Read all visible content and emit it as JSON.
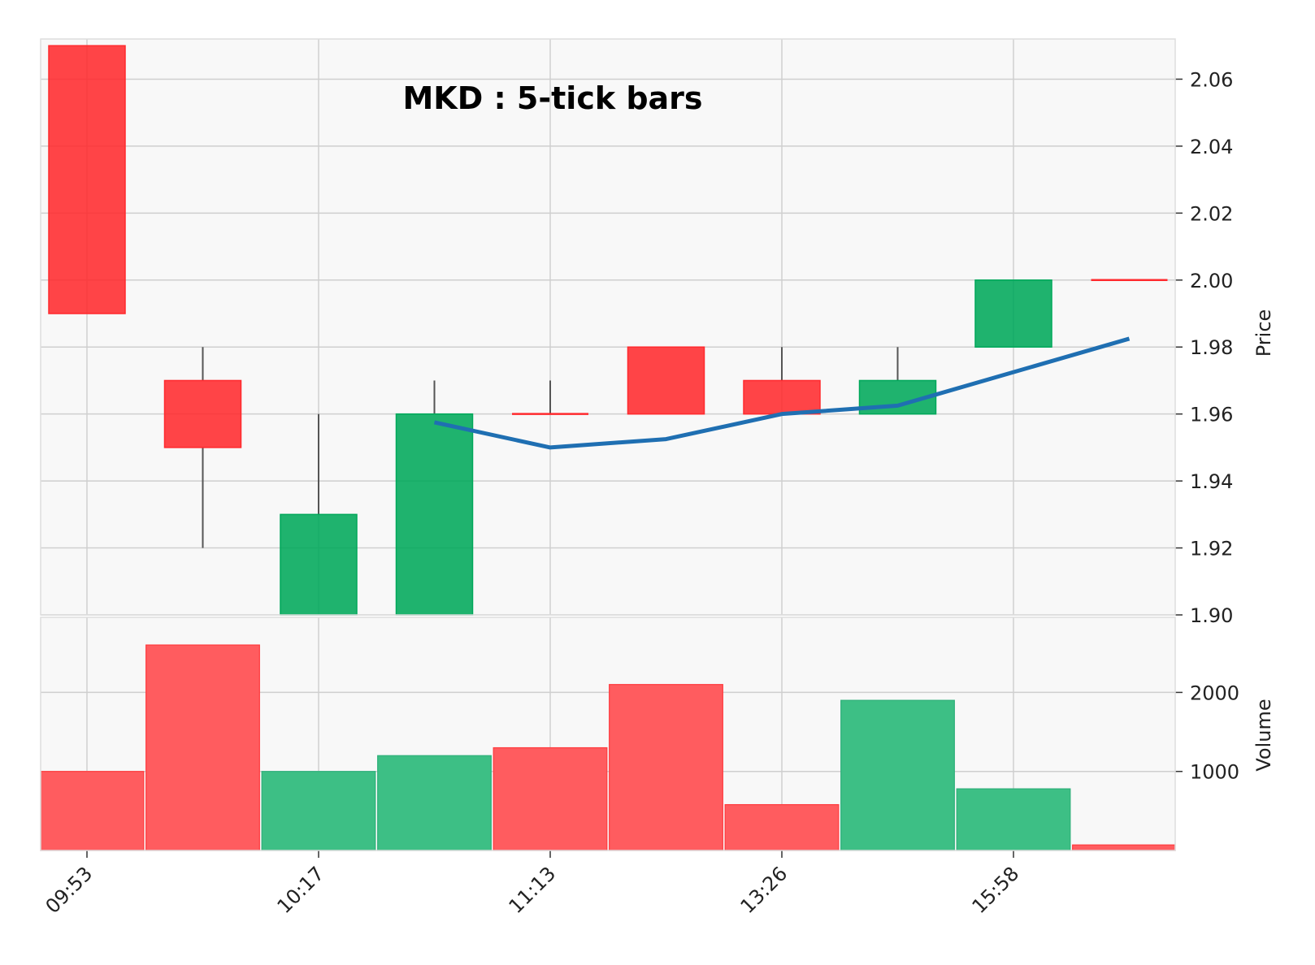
{
  "chart_data": {
    "type": "candlestick",
    "title": "MKD : 5-tick bars",
    "price_label": "Price",
    "volume_label": "Volume",
    "x_tick_labels": [
      {
        "index": 0,
        "label": "09:53"
      },
      {
        "index": 2,
        "label": "10:17"
      },
      {
        "index": 4,
        "label": "11:13"
      },
      {
        "index": 6,
        "label": "13:26"
      },
      {
        "index": 8,
        "label": "15:58"
      }
    ],
    "price_ticks": [
      1.9,
      1.92,
      1.94,
      1.96,
      1.98,
      2.0,
      2.02,
      2.04,
      2.06
    ],
    "price_tick_labels": [
      "1.90",
      "1.92",
      "1.94",
      "1.96",
      "1.98",
      "2.00",
      "2.02",
      "2.04",
      "2.06"
    ],
    "price_ylim": [
      1.9,
      2.072
    ],
    "volume_ticks": [
      1000,
      2000
    ],
    "volume_tick_labels": [
      "1000",
      "2000"
    ],
    "volume_ylim": [
      0,
      2950
    ],
    "candles": [
      {
        "open": 2.07,
        "high": 2.07,
        "low": 1.99,
        "close": 1.99,
        "volume": 1000
      },
      {
        "open": 1.97,
        "high": 1.98,
        "low": 1.92,
        "close": 1.95,
        "volume": 2600
      },
      {
        "open": 1.9,
        "high": 1.96,
        "low": 1.9,
        "close": 1.93,
        "volume": 1000
      },
      {
        "open": 1.9,
        "high": 1.97,
        "low": 1.9,
        "close": 1.96,
        "volume": 1200
      },
      {
        "open": 1.96,
        "high": 1.97,
        "low": 1.96,
        "close": 1.96,
        "volume": 1300
      },
      {
        "open": 1.98,
        "high": 1.98,
        "low": 1.96,
        "close": 1.96,
        "volume": 2100
      },
      {
        "open": 1.97,
        "high": 1.98,
        "low": 1.96,
        "close": 1.96,
        "volume": 580
      },
      {
        "open": 1.96,
        "high": 1.98,
        "low": 1.96,
        "close": 1.97,
        "volume": 1900
      },
      {
        "open": 1.98,
        "high": 2.0,
        "low": 1.98,
        "close": 2.0,
        "volume": 780
      },
      {
        "open": 2.0,
        "high": 2.0,
        "low": 2.0,
        "close": 2.0,
        "volume": 70
      }
    ],
    "moving_average": {
      "start_index": 3,
      "values": [
        1.9575,
        1.95,
        1.9525,
        1.96,
        1.9625,
        1.9725,
        1.9825
      ]
    },
    "grid": true,
    "colors": {
      "up": "#00a85a",
      "down": "#ff2a2e",
      "up_volume": "#3dbf85",
      "down_volume": "#ff5c5f",
      "wick": "#555555",
      "ma_line": "#1f6fb2",
      "grid": "#cfcfcf",
      "plot_bg": "#f8f8f8"
    }
  }
}
